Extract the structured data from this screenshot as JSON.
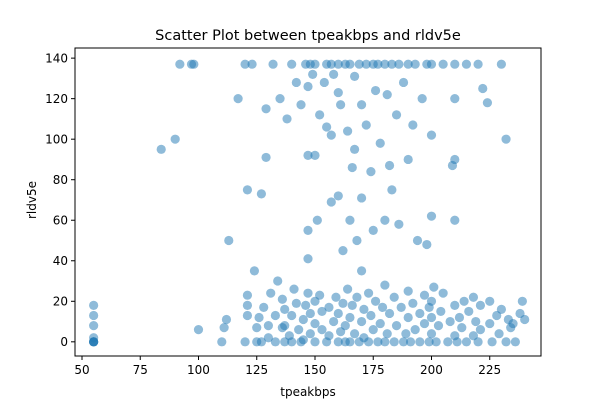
{
  "chart_data": {
    "type": "scatter",
    "title": "Scatter Plot between tpeakbps and rldv5e",
    "xlabel": "tpeakbps",
    "ylabel": "rldv5e",
    "xlim": [
      47,
      247
    ],
    "ylim": [
      -7,
      145
    ],
    "xticks": [
      50,
      75,
      100,
      125,
      150,
      175,
      200,
      225
    ],
    "yticks": [
      0,
      20,
      40,
      60,
      80,
      100,
      120,
      140
    ],
    "grid": false,
    "point_color": "#1f77b4",
    "point_alpha": 0.5,
    "points": [
      [
        55,
        0
      ],
      [
        55,
        0
      ],
      [
        55,
        0
      ],
      [
        55,
        0
      ],
      [
        55,
        2
      ],
      [
        55,
        8
      ],
      [
        55,
        13
      ],
      [
        55,
        18
      ],
      [
        84,
        95
      ],
      [
        90,
        100
      ],
      [
        92,
        137
      ],
      [
        97,
        137
      ],
      [
        98,
        137
      ],
      [
        100,
        6
      ],
      [
        110,
        0
      ],
      [
        111,
        7
      ],
      [
        112,
        11
      ],
      [
        113,
        50
      ],
      [
        117,
        120
      ],
      [
        120,
        0
      ],
      [
        120,
        137
      ],
      [
        121,
        75
      ],
      [
        121,
        18
      ],
      [
        121,
        23
      ],
      [
        121,
        13
      ],
      [
        123,
        137
      ],
      [
        124,
        35
      ],
      [
        125,
        0
      ],
      [
        125,
        7
      ],
      [
        126,
        12
      ],
      [
        127,
        0
      ],
      [
        127,
        73
      ],
      [
        128,
        17
      ],
      [
        129,
        91
      ],
      [
        129,
        115
      ],
      [
        130,
        8
      ],
      [
        130,
        2
      ],
      [
        131,
        24
      ],
      [
        132,
        137
      ],
      [
        133,
        0
      ],
      [
        133,
        13
      ],
      [
        134,
        30
      ],
      [
        135,
        120
      ],
      [
        136,
        7
      ],
      [
        136,
        21
      ],
      [
        137,
        0
      ],
      [
        137,
        8
      ],
      [
        137,
        16
      ],
      [
        138,
        110
      ],
      [
        139,
        3
      ],
      [
        140,
        0
      ],
      [
        140,
        137
      ],
      [
        140,
        13
      ],
      [
        141,
        26
      ],
      [
        142,
        19
      ],
      [
        142,
        128
      ],
      [
        143,
        6
      ],
      [
        144,
        0
      ],
      [
        144,
        117
      ],
      [
        145,
        1
      ],
      [
        145,
        11
      ],
      [
        146,
        18
      ],
      [
        146,
        137
      ],
      [
        147,
        92
      ],
      [
        147,
        55
      ],
      [
        147,
        41
      ],
      [
        147,
        24
      ],
      [
        147,
        126
      ],
      [
        148,
        137
      ],
      [
        148,
        4
      ],
      [
        148,
        14
      ],
      [
        149,
        132
      ],
      [
        150,
        0
      ],
      [
        150,
        9
      ],
      [
        150,
        20
      ],
      [
        150,
        137
      ],
      [
        150,
        92
      ],
      [
        151,
        60
      ],
      [
        152,
        112
      ],
      [
        152,
        23
      ],
      [
        153,
        6
      ],
      [
        153,
        15
      ],
      [
        154,
        128
      ],
      [
        155,
        0
      ],
      [
        155,
        106
      ],
      [
        155,
        137
      ],
      [
        156,
        3
      ],
      [
        156,
        17
      ],
      [
        157,
        69
      ],
      [
        157,
        102
      ],
      [
        157,
        137
      ],
      [
        158,
        10
      ],
      [
        158,
        132
      ],
      [
        159,
        22
      ],
      [
        160,
        0
      ],
      [
        160,
        137
      ],
      [
        160,
        72
      ],
      [
        160,
        14
      ],
      [
        160,
        123
      ],
      [
        161,
        5
      ],
      [
        161,
        117
      ],
      [
        162,
        19
      ],
      [
        162,
        45
      ],
      [
        163,
        0
      ],
      [
        163,
        137
      ],
      [
        163,
        8
      ],
      [
        164,
        104
      ],
      [
        164,
        26
      ],
      [
        165,
        0
      ],
      [
        165,
        12
      ],
      [
        165,
        137
      ],
      [
        165,
        60
      ],
      [
        166,
        86
      ],
      [
        166,
        18
      ],
      [
        167,
        131
      ],
      [
        167,
        4
      ],
      [
        167,
        95
      ],
      [
        168,
        50
      ],
      [
        168,
        22
      ],
      [
        169,
        0
      ],
      [
        169,
        137
      ],
      [
        170,
        10
      ],
      [
        170,
        117
      ],
      [
        170,
        71
      ],
      [
        170,
        35
      ],
      [
        171,
        2
      ],
      [
        171,
        16
      ],
      [
        172,
        137
      ],
      [
        172,
        107
      ],
      [
        173,
        24
      ],
      [
        173,
        0
      ],
      [
        174,
        84
      ],
      [
        174,
        13
      ],
      [
        175,
        137
      ],
      [
        175,
        55
      ],
      [
        175,
        6
      ],
      [
        176,
        124
      ],
      [
        176,
        20
      ],
      [
        177,
        0
      ],
      [
        177,
        137
      ],
      [
        178,
        98
      ],
      [
        178,
        9
      ],
      [
        179,
        17
      ],
      [
        180,
        0
      ],
      [
        180,
        137
      ],
      [
        180,
        60
      ],
      [
        180,
        28
      ],
      [
        181,
        122
      ],
      [
        181,
        4
      ],
      [
        182,
        14
      ],
      [
        182,
        87
      ],
      [
        183,
        137
      ],
      [
        183,
        75
      ],
      [
        184,
        0
      ],
      [
        184,
        22
      ],
      [
        185,
        112
      ],
      [
        185,
        8
      ],
      [
        186,
        137
      ],
      [
        186,
        58
      ],
      [
        187,
        17
      ],
      [
        188,
        0
      ],
      [
        188,
        128
      ],
      [
        189,
        4
      ],
      [
        190,
        137
      ],
      [
        190,
        90
      ],
      [
        190,
        12
      ],
      [
        190,
        25
      ],
      [
        191,
        0
      ],
      [
        192,
        107
      ],
      [
        192,
        19
      ],
      [
        193,
        6
      ],
      [
        193,
        137
      ],
      [
        194,
        50
      ],
      [
        195,
        0
      ],
      [
        195,
        14
      ],
      [
        196,
        120
      ],
      [
        197,
        9
      ],
      [
        197,
        23
      ],
      [
        198,
        137
      ],
      [
        198,
        48
      ],
      [
        199,
        0
      ],
      [
        199,
        17
      ],
      [
        200,
        137
      ],
      [
        200,
        62
      ],
      [
        200,
        102
      ],
      [
        200,
        4
      ],
      [
        200,
        12
      ],
      [
        200,
        20
      ],
      [
        201,
        27
      ],
      [
        202,
        0
      ],
      [
        203,
        8
      ],
      [
        204,
        15
      ],
      [
        205,
        137
      ],
      [
        205,
        24
      ],
      [
        207,
        0
      ],
      [
        208,
        10
      ],
      [
        209,
        87
      ],
      [
        210,
        137
      ],
      [
        210,
        120
      ],
      [
        210,
        60
      ],
      [
        210,
        90
      ],
      [
        210,
        18
      ],
      [
        210,
        3
      ],
      [
        211,
        0
      ],
      [
        212,
        12
      ],
      [
        213,
        7
      ],
      [
        214,
        20
      ],
      [
        215,
        137
      ],
      [
        215,
        0
      ],
      [
        216,
        15
      ],
      [
        218,
        3
      ],
      [
        218,
        22
      ],
      [
        219,
        10
      ],
      [
        220,
        0
      ],
      [
        220,
        137
      ],
      [
        221,
        6
      ],
      [
        221,
        18
      ],
      [
        222,
        125
      ],
      [
        224,
        118
      ],
      [
        225,
        9
      ],
      [
        225,
        20
      ],
      [
        226,
        0
      ],
      [
        228,
        13
      ],
      [
        229,
        4
      ],
      [
        230,
        137
      ],
      [
        230,
        16
      ],
      [
        232,
        0
      ],
      [
        232,
        100
      ],
      [
        233,
        11
      ],
      [
        234,
        7
      ],
      [
        235,
        9
      ],
      [
        236,
        0
      ],
      [
        238,
        14
      ],
      [
        239,
        20
      ],
      [
        240,
        11
      ]
    ]
  }
}
